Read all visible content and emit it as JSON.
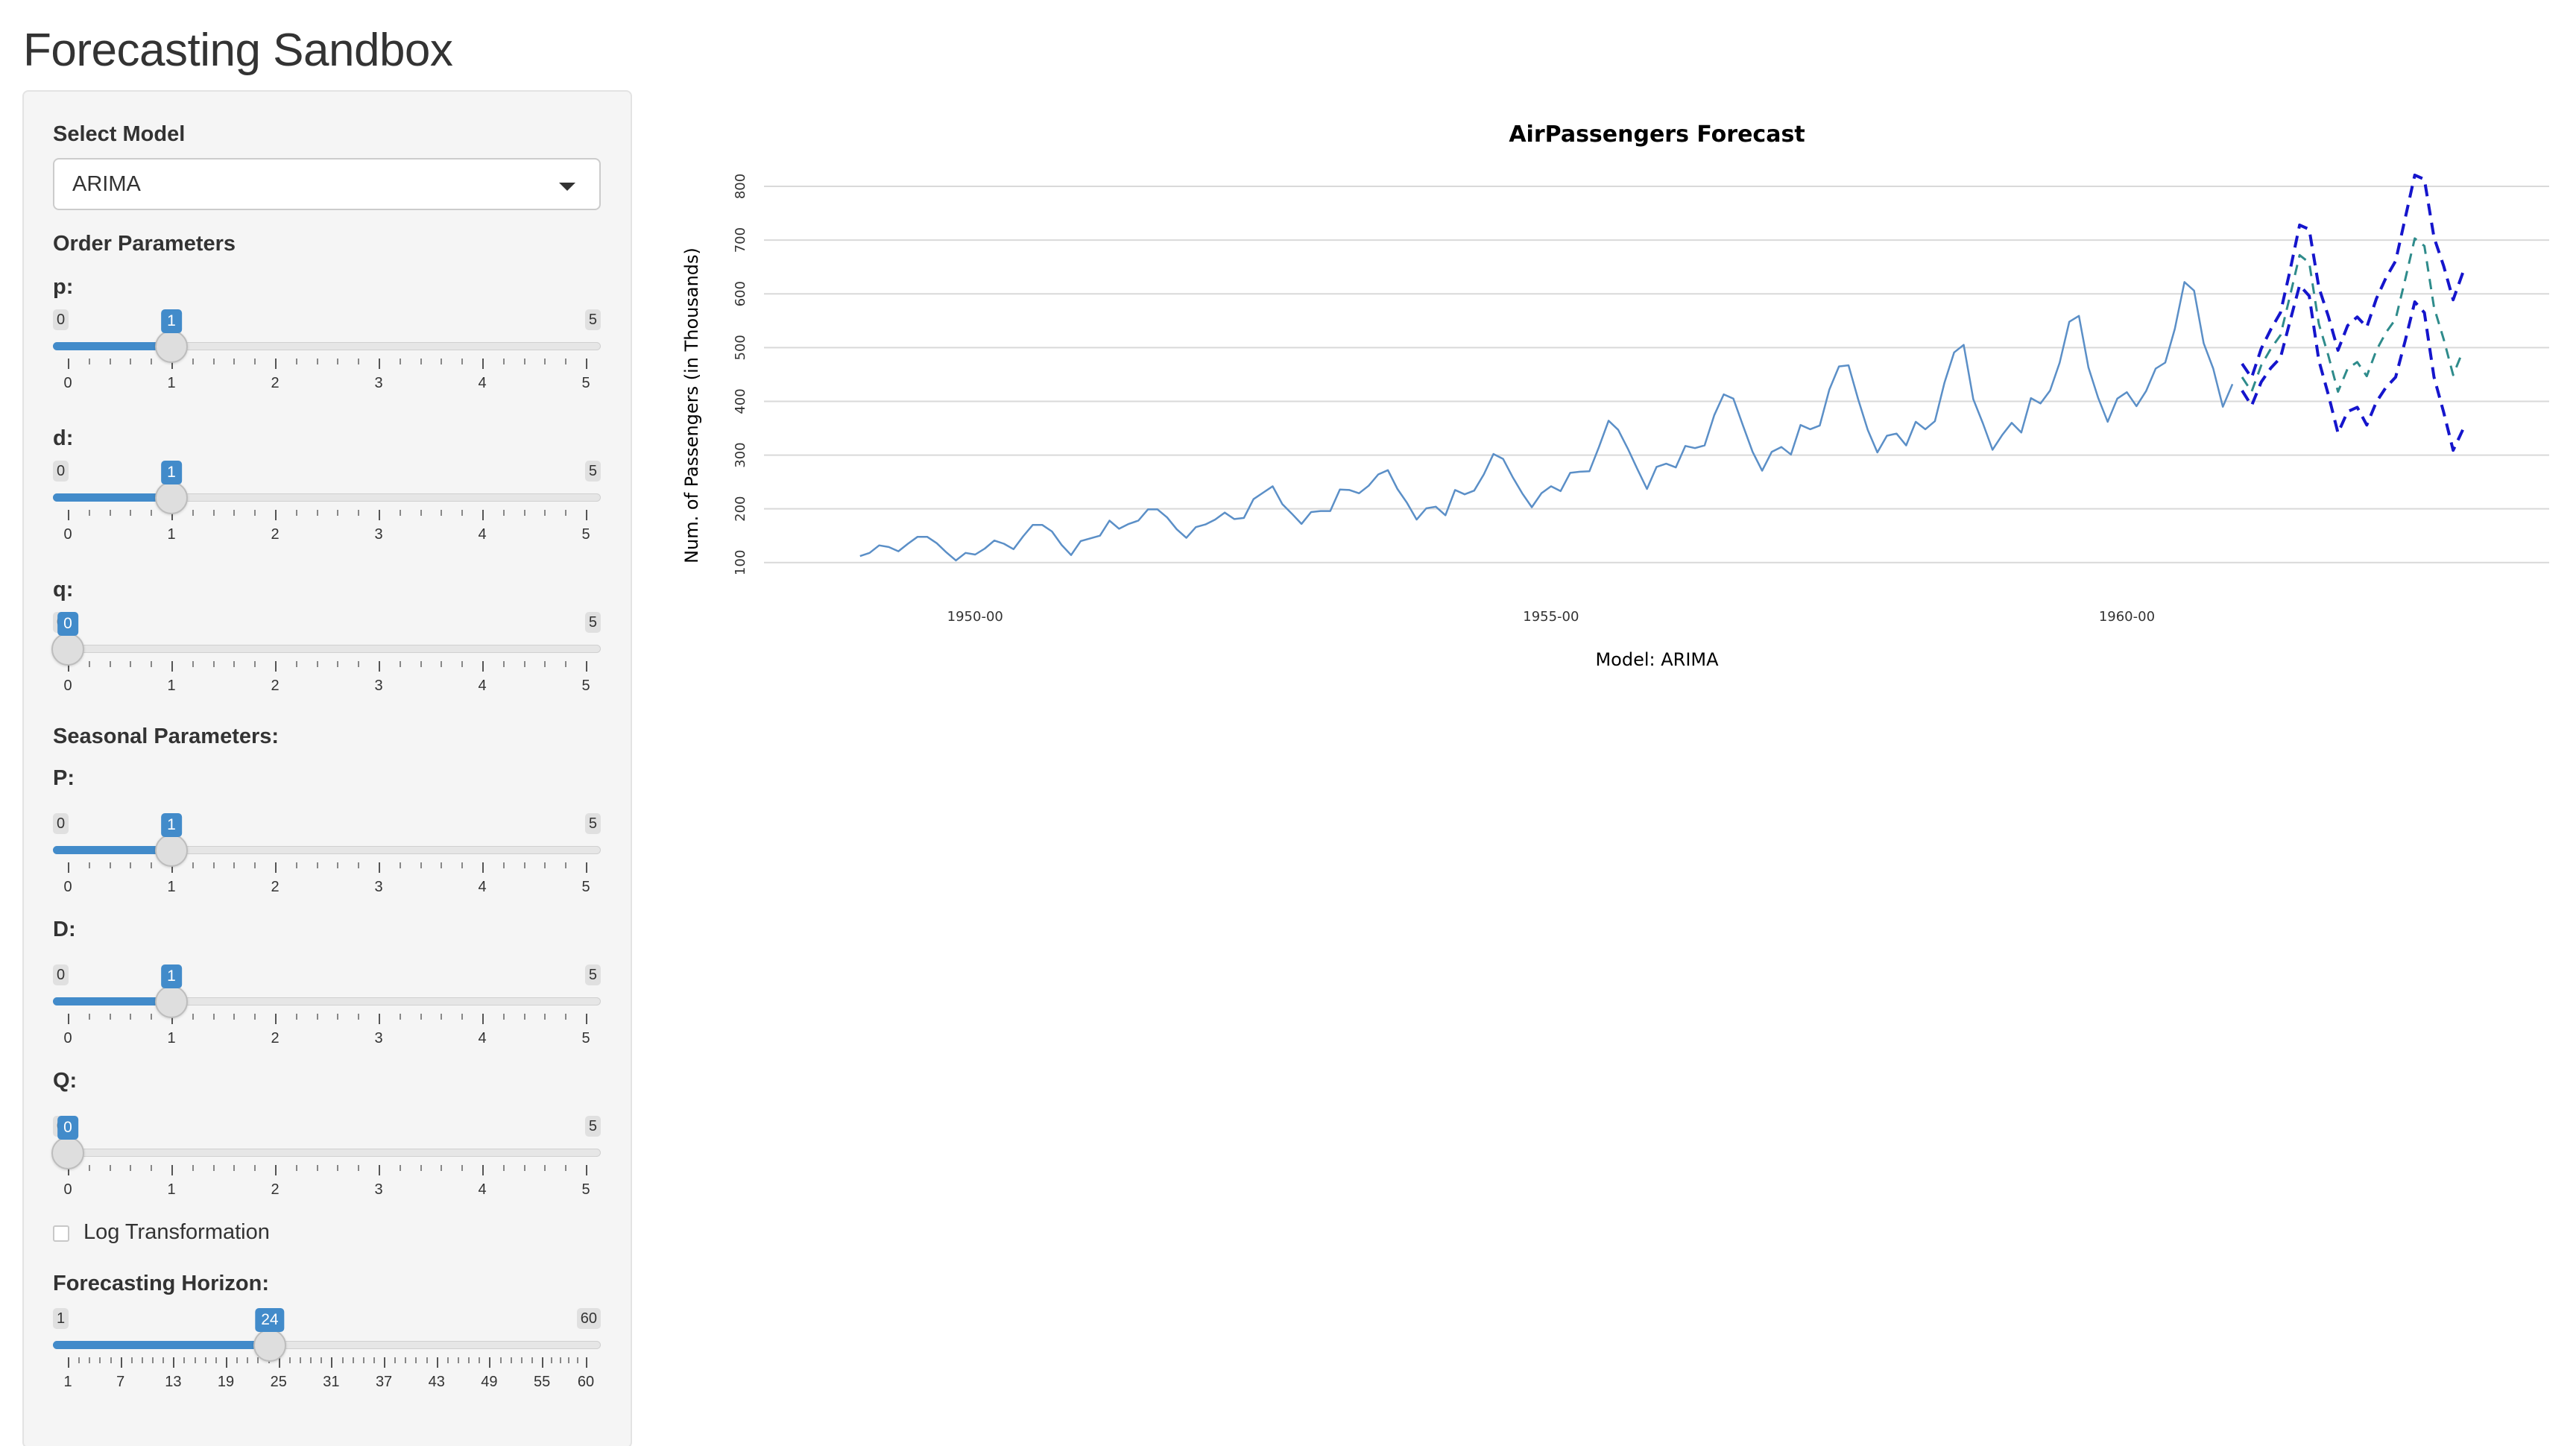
{
  "app": {
    "title": "Forecasting Sandbox"
  },
  "sidebar": {
    "model_label": "Select Model",
    "model_value": "ARIMA",
    "order_label": "Order Parameters",
    "seasonal_label": "Seasonal Parameters:",
    "log_label": "Log Transformation",
    "log_checked": false,
    "horizon_label": "Forecasting Horizon:",
    "sliders": {
      "p": {
        "label": "p:",
        "min": "0",
        "max": "5",
        "value": 1,
        "value_text": "1",
        "ticks": [
          "0",
          "1",
          "2",
          "3",
          "4",
          "5"
        ]
      },
      "d": {
        "label": "d:",
        "min": "0",
        "max": "5",
        "value": 1,
        "value_text": "1",
        "ticks": [
          "0",
          "1",
          "2",
          "3",
          "4",
          "5"
        ]
      },
      "q": {
        "label": "q:",
        "min": "0",
        "max": "5",
        "value": 0,
        "value_text": "0",
        "ticks": [
          "0",
          "1",
          "2",
          "3",
          "4",
          "5"
        ]
      },
      "P": {
        "label": "P:",
        "min": "0",
        "max": "5",
        "value": 1,
        "value_text": "1",
        "ticks": [
          "0",
          "1",
          "2",
          "3",
          "4",
          "5"
        ]
      },
      "D": {
        "label": "D:",
        "min": "0",
        "max": "5",
        "value": 1,
        "value_text": "1",
        "ticks": [
          "0",
          "1",
          "2",
          "3",
          "4",
          "5"
        ]
      },
      "Q": {
        "label": "Q:",
        "min": "0",
        "max": "5",
        "value": 0,
        "value_text": "0",
        "ticks": [
          "0",
          "1",
          "2",
          "3",
          "4",
          "5"
        ]
      },
      "horizon": {
        "label": "Forecasting Horizon:",
        "min": "1",
        "max": "60",
        "value": 24,
        "value_text": "24",
        "ticks": [
          "1",
          "7",
          "13",
          "19",
          "25",
          "31",
          "37",
          "43",
          "49",
          "55",
          "60"
        ]
      }
    }
  },
  "colors": {
    "accent": "#428bca",
    "history": "#5b8fc7",
    "forecast_mean": "#2e8b8b",
    "forecast_bounds": "#1515cc"
  },
  "chart_data": {
    "type": "line",
    "title": "AirPassengers Forecast",
    "xlabel": "Model: ARIMA",
    "ylabel": "Num. of Passengers (in Thousands)",
    "xticks": [
      "1950-00",
      "1955-00",
      "1960-00"
    ],
    "yticks": [
      "100",
      "200",
      "300",
      "400",
      "500",
      "600",
      "700",
      "800"
    ],
    "xlim": [
      "1948-03",
      "1963-09"
    ],
    "ylim": [
      90,
      800
    ],
    "grid": "horizontal",
    "series": [
      {
        "start": "1949-01",
        "values": [
          112,
          118,
          132,
          129,
          121,
          135,
          148,
          148,
          136,
          119,
          104,
          118,
          115,
          126,
          141,
          135,
          125,
          149,
          170,
          170,
          158,
          133,
          114,
          140,
          145,
          150,
          178,
          163,
          172,
          178,
          199,
          199,
          184,
          162,
          146,
          166,
          171,
          180,
          193,
          181,
          183,
          218,
          230,
          242,
          209,
          191,
          172,
          194,
          196,
          196,
          236,
          235,
          229,
          243,
          264,
          272,
          237,
          211,
          180,
          201,
          204,
          188,
          235,
          227,
          234,
          264,
          302,
          293,
          259,
          229,
          203,
          229,
          242,
          233,
          267,
          269,
          270,
          315,
          364,
          347,
          312,
          274,
          237,
          278,
          284,
          277,
          317,
          313,
          318,
          374,
          413,
          405,
          355,
          306,
          271,
          306,
          315,
          301,
          356,
          348,
          355,
          422,
          465,
          467,
          404,
          347,
          305,
          336,
          340,
          318,
          362,
          348,
          363,
          435,
          491,
          505,
          404,
          359,
          310,
          337,
          360,
          342,
          406,
          396,
          420,
          472,
          548,
          559,
          463,
          407,
          362,
          405,
          417,
          391,
          419,
          461,
          472,
          535,
          622,
          606,
          508,
          461,
          390,
          432
        ]
      },
      {
        "start": "1961-01",
        "values": [
          445,
          418,
          467,
          498,
          523,
          596,
          672,
          658,
          544,
          485,
          418,
          461,
          473,
          447,
          495,
          528,
          553,
          627,
          703,
          689,
          575,
          516,
          449,
          493
        ]
      },
      {
        "start": "1961-01",
        "values": [
          470,
          444,
          498,
          534,
          565,
          643,
          728,
          720,
          612,
          558,
          495,
          541,
          557,
          538,
          591,
          630,
          661,
          741,
          821,
          813,
          705,
          652,
          589,
          639
        ]
      },
      {
        "start": "1961-01",
        "values": [
          420,
          392,
          436,
          462,
          481,
          549,
          616,
          596,
          476,
          412,
          341,
          381,
          389,
          356,
          399,
          426,
          445,
          513,
          585,
          565,
          445,
          380,
          309,
          347
        ]
      }
    ]
  }
}
